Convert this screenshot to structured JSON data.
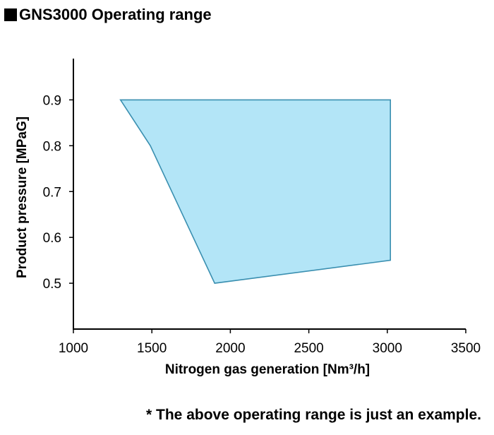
{
  "header": {
    "title": "GNS3000 Operating range"
  },
  "footnote": "* The above operating range is just an example.",
  "colors": {
    "fill": "#b3e5f7",
    "stroke": "#3a8fb0",
    "axis": "#000000"
  },
  "chart_data": {
    "type": "area",
    "title": "",
    "xlabel": "Nitrogen gas generation [Nm³/h]",
    "ylabel": "Product pressure [MPaG]",
    "xlim": [
      1000,
      3500
    ],
    "ylim": [
      0.4,
      0.99
    ],
    "xticks": [
      1000,
      1500,
      2000,
      2500,
      3000,
      3500
    ],
    "yticks": [
      0.5,
      0.6,
      0.7,
      0.8,
      0.9
    ],
    "xtick_labels": [
      "1000",
      "1500",
      "2000",
      "2500",
      "3000",
      "3500"
    ],
    "ytick_labels": [
      "0.5",
      "0.6",
      "0.7",
      "0.8",
      "0.9"
    ],
    "grid": false,
    "region": [
      {
        "x": 1300,
        "y": 0.9
      },
      {
        "x": 3020,
        "y": 0.9
      },
      {
        "x": 3020,
        "y": 0.55
      },
      {
        "x": 1900,
        "y": 0.5
      },
      {
        "x": 1490,
        "y": 0.8
      }
    ]
  }
}
